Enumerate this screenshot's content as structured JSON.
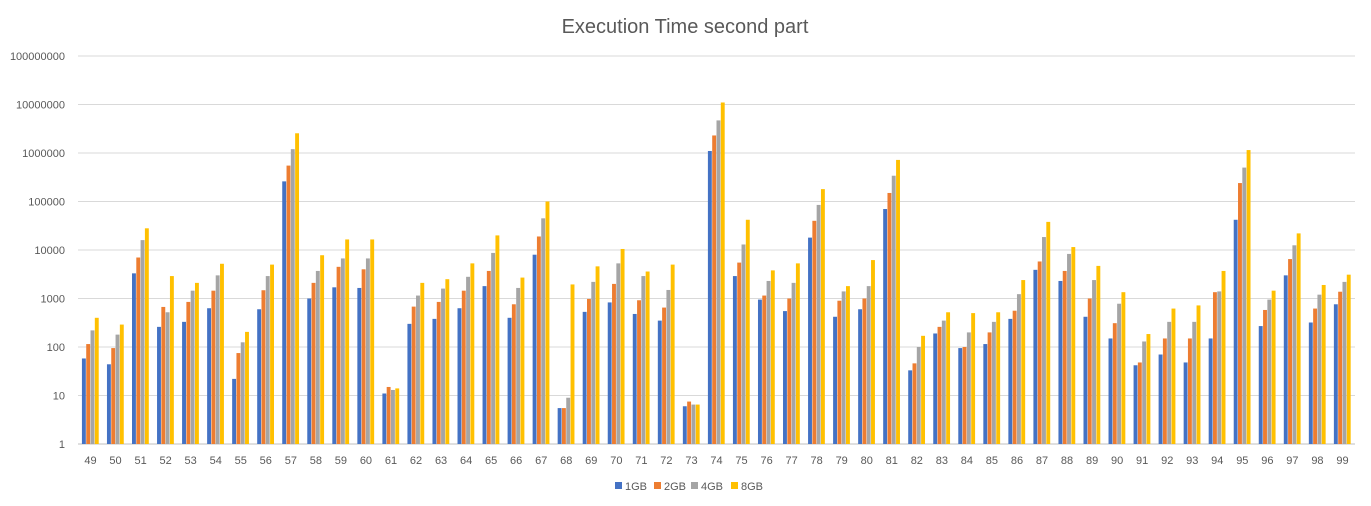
{
  "chart_data": {
    "type": "bar",
    "title": "Execution Time second part",
    "xlabel": "",
    "ylabel": "",
    "y_scale": "log10",
    "ylim": [
      1,
      100000000
    ],
    "y_ticks": [
      "1",
      "10",
      "100",
      "1000",
      "10000",
      "100000",
      "1000000",
      "10000000",
      "100000000"
    ],
    "grid": true,
    "legend_position": "bottom",
    "categories": [
      "49",
      "50",
      "51",
      "52",
      "53",
      "54",
      "55",
      "56",
      "57",
      "58",
      "59",
      "60",
      "61",
      "62",
      "63",
      "64",
      "65",
      "66",
      "67",
      "68",
      "69",
      "70",
      "71",
      "72",
      "73",
      "74",
      "75",
      "76",
      "77",
      "78",
      "79",
      "80",
      "81",
      "82",
      "83",
      "84",
      "85",
      "86",
      "87",
      "88",
      "89",
      "90",
      "91",
      "92",
      "93",
      "94",
      "95",
      "96",
      "97",
      "98",
      "99"
    ],
    "series": [
      {
        "name": "1GB",
        "color": "#4472C4",
        "values": [
          58,
          44,
          3300,
          260,
          330,
          630,
          22,
          600,
          260000,
          1000,
          1700,
          1650,
          11,
          300,
          380,
          630,
          1800,
          400,
          8000,
          5.5,
          530,
          830,
          480,
          350,
          6,
          1100000,
          2900,
          950,
          550,
          18000,
          420,
          600,
          70000,
          33,
          190,
          95,
          115,
          380,
          3900,
          2300,
          420,
          150,
          42,
          70,
          48,
          150,
          42000,
          270,
          3000,
          320,
          760
        ]
      },
      {
        "name": "2GB",
        "color": "#ED7D31",
        "values": [
          115,
          95,
          7000,
          670,
          850,
          1450,
          75,
          1480,
          550000,
          2100,
          4500,
          4000,
          15,
          680,
          850,
          1450,
          3700,
          760,
          19000,
          5.5,
          980,
          2000,
          920,
          650,
          7.5,
          2300000,
          5500,
          1150,
          1000,
          40000,
          900,
          1000,
          150000,
          46,
          260,
          100,
          200,
          560,
          5800,
          3700,
          1000,
          310,
          48,
          150,
          150,
          1350,
          240000,
          580,
          6500,
          620,
          1380
        ]
      },
      {
        "name": "4GB",
        "color": "#A5A5A5",
        "values": [
          220,
          180,
          16000,
          520,
          1450,
          3000,
          125,
          2900,
          1200000,
          3700,
          6700,
          6700,
          13,
          1150,
          1600,
          2800,
          8700,
          1650,
          45000,
          9,
          2200,
          5300,
          2900,
          1500,
          6.5,
          4700000,
          13000,
          2300,
          2100,
          85000,
          1400,
          1800,
          340000,
          100,
          350,
          200,
          330,
          1230,
          18500,
          8300,
          2400,
          780,
          130,
          330,
          330,
          1400,
          500000,
          950,
          12500,
          1200,
          2200
        ]
      },
      {
        "name": "8GB",
        "color": "#FFC000",
        "values": [
          400,
          290,
          28000,
          2900,
          2100,
          5200,
          205,
          5000,
          2550000,
          7800,
          16500,
          16500,
          14,
          2100,
          2500,
          5300,
          20000,
          2700,
          100000,
          1950,
          4600,
          10500,
          3600,
          5000,
          6.5,
          11000000,
          42000,
          3800,
          5300,
          180000,
          1800,
          6200,
          720000,
          170,
          520,
          500,
          520,
          2400,
          38000,
          11500,
          4700,
          1350,
          185,
          620,
          720,
          3700,
          1150000,
          1450,
          22000,
          1900,
          3100
        ]
      }
    ]
  }
}
